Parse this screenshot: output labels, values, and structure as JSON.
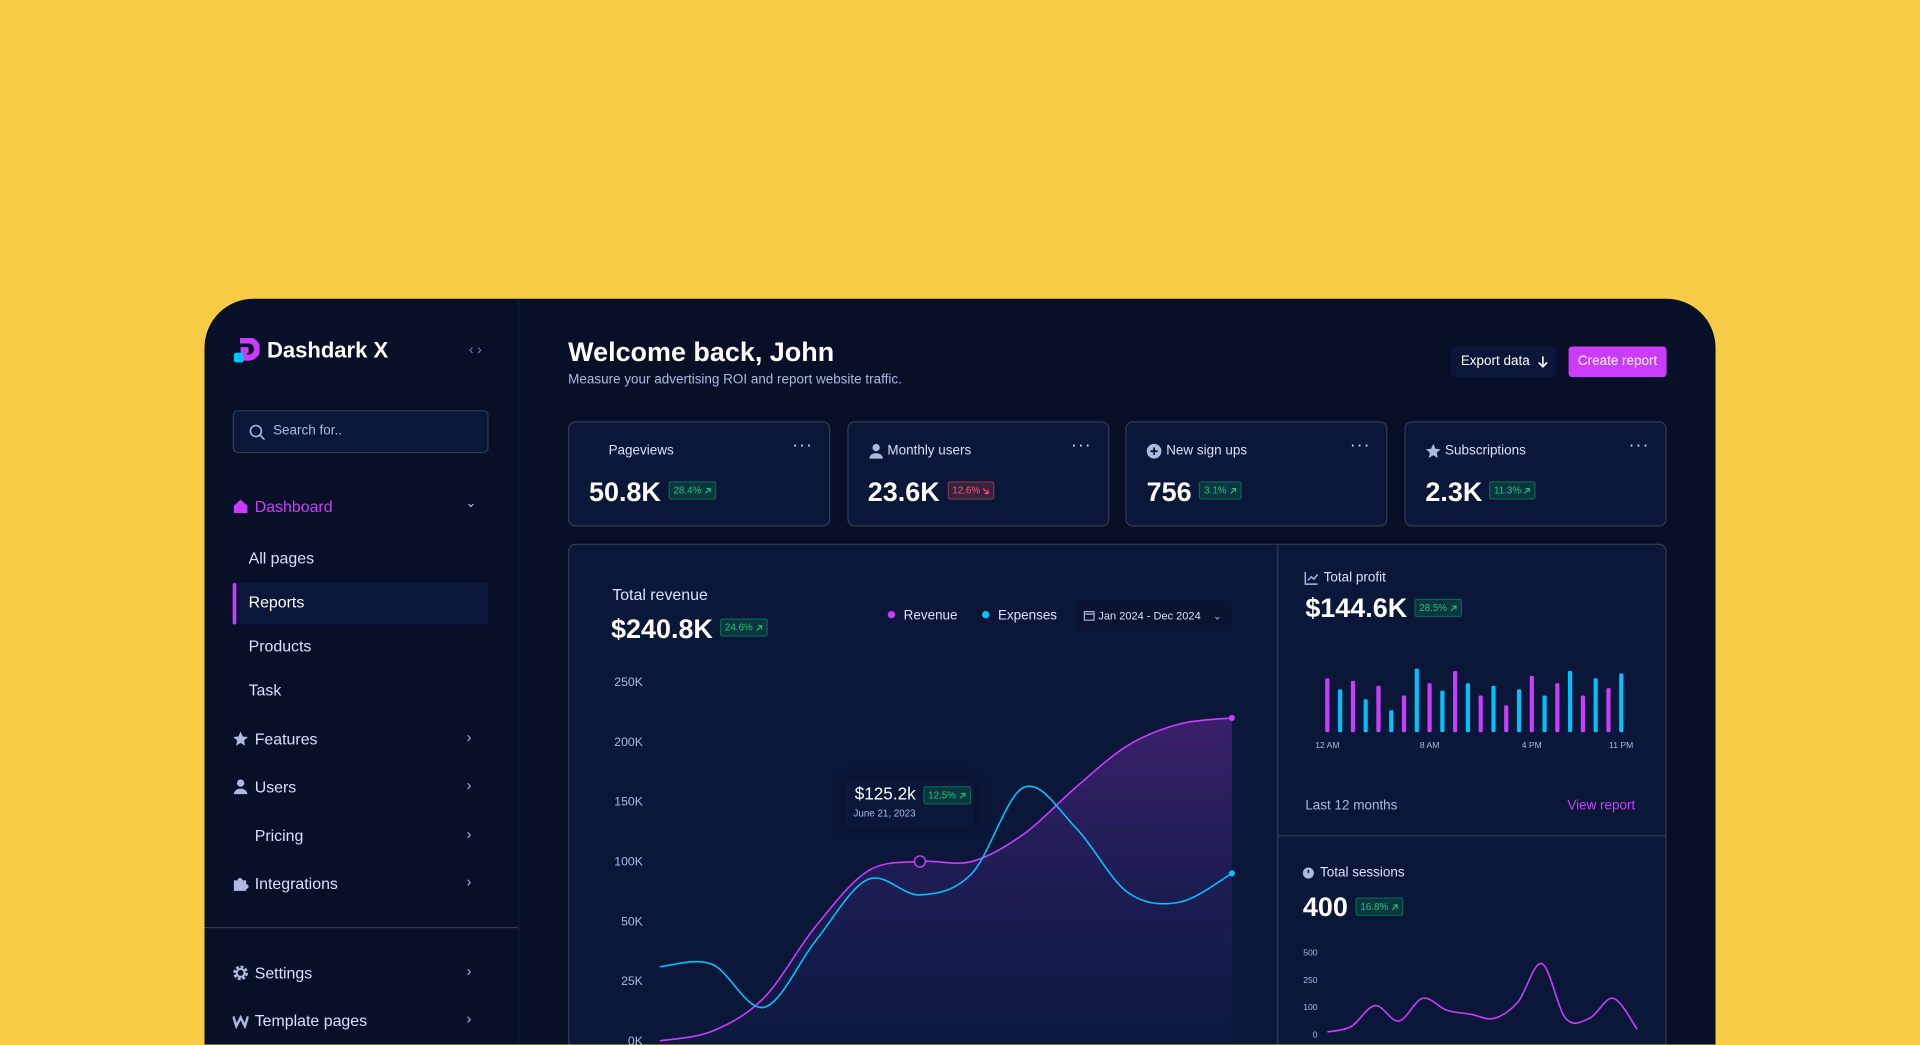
{
  "sidebar": {
    "brand": "Dashdark X",
    "search": "Search for..",
    "main": {
      "label": "Dashboard",
      "items": [
        "All pages",
        "Reports",
        "Products",
        "Task"
      ]
    },
    "sections": [
      "Features",
      "Users",
      "Pricing",
      "Integrations"
    ],
    "footer": [
      "Settings",
      "Template pages"
    ]
  },
  "header": {
    "title": "Welcome back, John",
    "subtitle": "Measure your advertising ROI and report website traffic.",
    "export": "Export data",
    "create": "Create report"
  },
  "stats": [
    {
      "label": "Pageviews",
      "value": "50.8K",
      "change": "28.4%",
      "trend": "up"
    },
    {
      "label": "Monthly users",
      "value": "23.6K",
      "change": "12.6%",
      "trend": "down"
    },
    {
      "label": "New sign ups",
      "value": "756",
      "change": "3.1%",
      "trend": "up"
    },
    {
      "label": "Subscriptions",
      "value": "2.3K",
      "change": "11.3%",
      "trend": "up"
    }
  ],
  "revenue": {
    "title": "Total revenue",
    "value": "$240.8K",
    "change": "24.6%",
    "date_range": "Jan 2024 - Dec 2024",
    "tooltip": {
      "value": "$125.2k",
      "change": "12.5%",
      "date": "June 21, 2023"
    }
  },
  "profit": {
    "title": "Total profit",
    "value": "$144.6K",
    "change": "28.5%",
    "footer": "Last 12 months",
    "link": "View report"
  },
  "sessions": {
    "title": "Total sessions",
    "value": "400",
    "change": "16.8%"
  },
  "chart_data": [
    {
      "type": "line",
      "categories": [
        null,
        null,
        null,
        null,
        null,
        null,
        null,
        null,
        null,
        null,
        null,
        null
      ],
      "series": [
        {
          "name": "Revenue",
          "color": "#cb3cff",
          "values": [
            0,
            4,
            18,
            48,
            92,
            100,
            100,
            123,
            162,
            197,
            215,
            220
          ]
        },
        {
          "name": "Expenses",
          "color": "#00c2ff",
          "values": [
            31,
            32,
            14,
            42,
            85,
            72,
            90,
            162,
            128,
            74,
            66,
            90
          ]
        }
      ],
      "ylim": [
        0,
        250
      ],
      "yticks": [
        {
          "value": 0,
          "label": "0K"
        },
        {
          "value": 25,
          "label": "25K"
        },
        {
          "value": 50,
          "label": "50K"
        },
        {
          "value": 100,
          "label": "100K"
        },
        {
          "value": 150,
          "label": "150K"
        },
        {
          "value": 200,
          "label": "200K"
        },
        {
          "value": 250,
          "label": "250K"
        }
      ]
    },
    {
      "type": "bar",
      "categories": [
        "12 AM",
        null,
        null,
        null,
        null,
        null,
        null,
        null,
        "8 AM",
        null,
        null,
        null,
        null,
        null,
        null,
        null,
        "4 PM",
        null,
        null,
        null,
        null,
        null,
        null,
        "11 PM"
      ],
      "values": [
        44,
        35,
        42,
        27,
        38,
        18,
        30,
        52,
        40,
        34,
        50,
        40,
        30,
        38,
        22,
        35,
        46,
        30,
        40,
        50,
        30,
        44,
        36,
        48
      ],
      "colors": [
        "#cb3cff",
        "#00c2ff"
      ],
      "ylim": [
        0,
        60
      ]
    },
    {
      "type": "line",
      "categories": [
        null,
        null,
        null,
        null,
        null,
        null,
        null,
        null,
        null,
        null,
        null,
        null,
        null,
        null
      ],
      "series": [
        {
          "color": "#cb3cff",
          "values": [
            10,
            30,
            110,
            50,
            150,
            90,
            75,
            60,
            130,
            400,
            60,
            60,
            150,
            20
          ]
        }
      ],
      "ylim": [
        0,
        500
      ],
      "yticks": [
        0,
        100,
        250,
        500
      ]
    }
  ]
}
